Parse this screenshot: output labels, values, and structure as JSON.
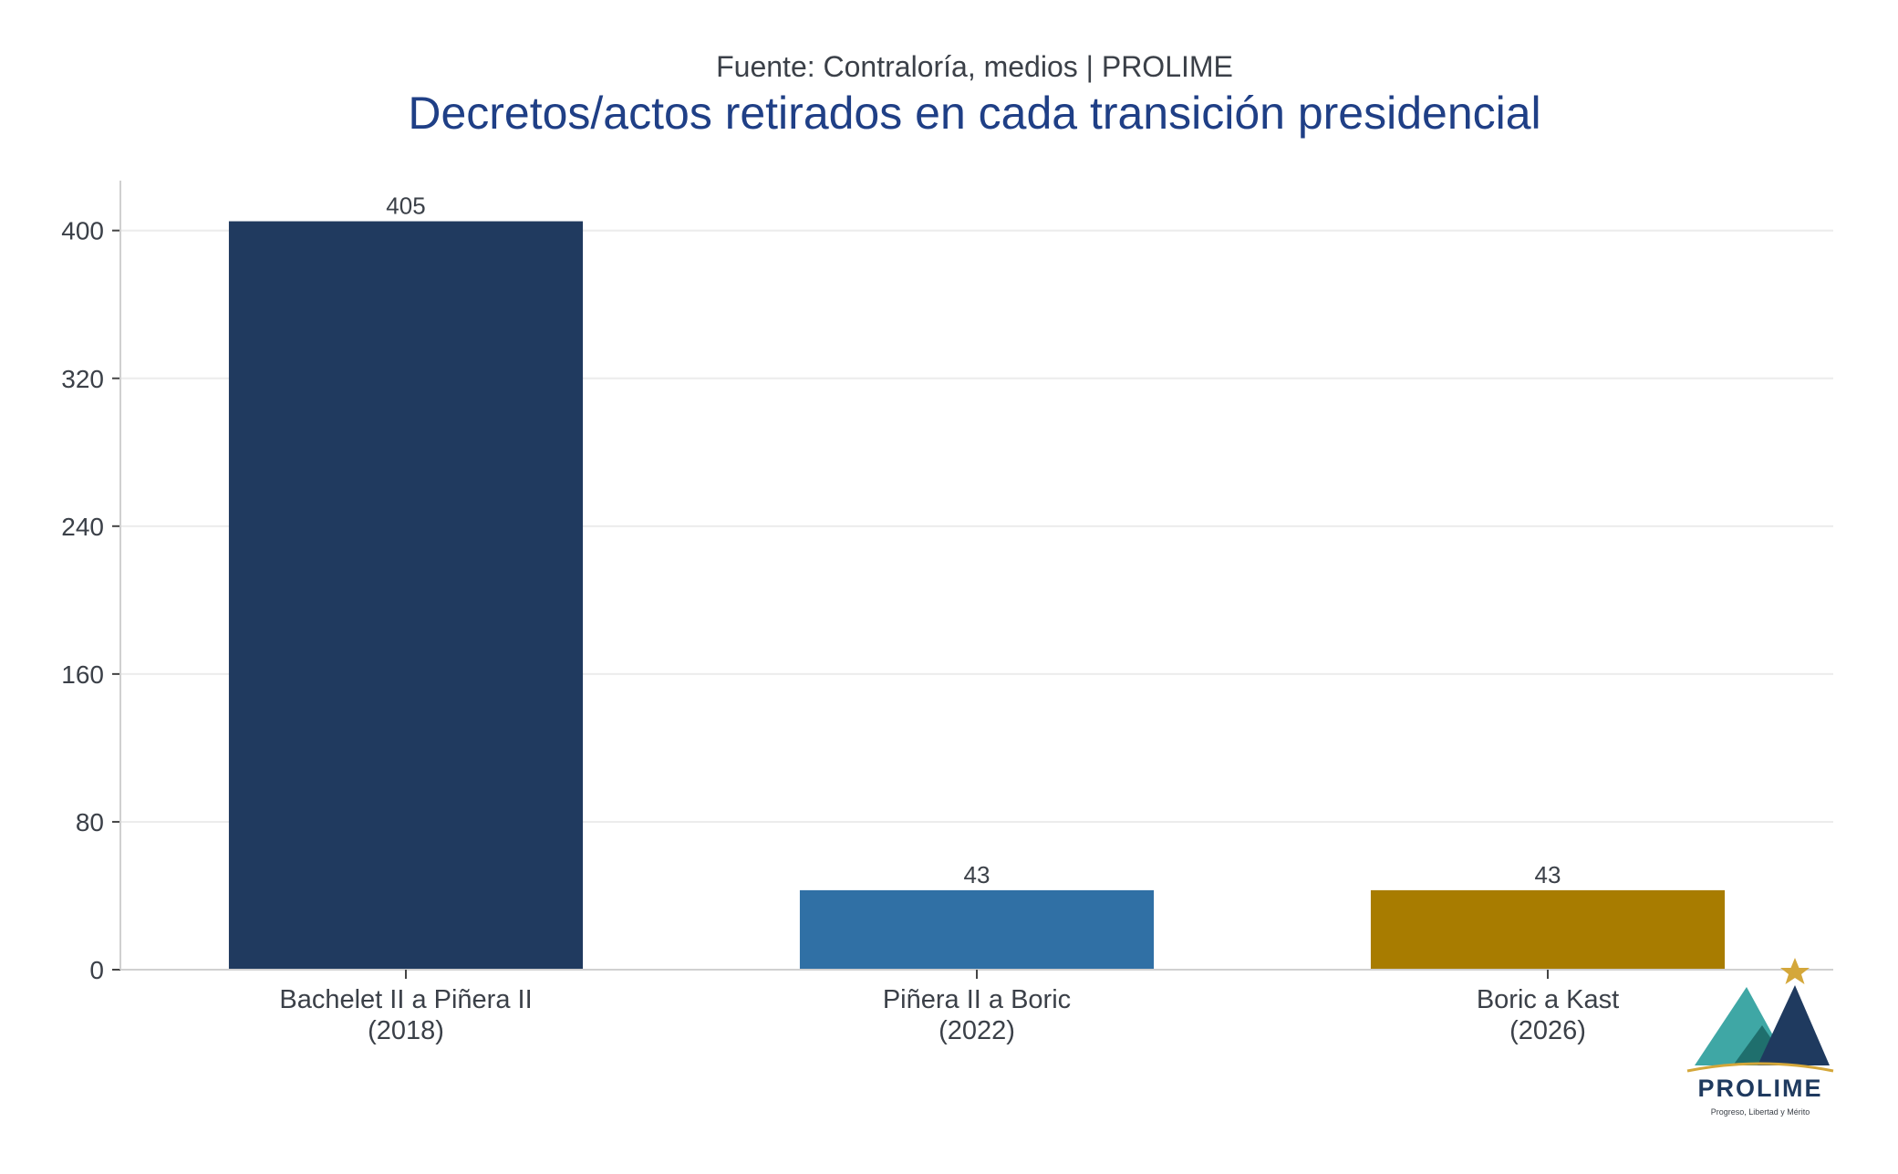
{
  "header": {
    "subtitle": "Fuente: Contraloría, medios | PROLIME",
    "title": "Decretos/actos retirados en cada transición presidencial"
  },
  "chart_data": {
    "type": "bar",
    "categories": [
      [
        "Bachelet II a Piñera II",
        "(2018)"
      ],
      [
        "Piñera II a Boric",
        "(2022)"
      ],
      [
        "Boric a Kast",
        "(2026)"
      ]
    ],
    "values": [
      405,
      43,
      43
    ],
    "value_labels": [
      "405",
      "43",
      "43"
    ],
    "colors": [
      "#203a5f",
      "#3070a5",
      "#a87c00"
    ],
    "yticks": [
      0,
      80,
      160,
      240,
      320,
      400
    ],
    "ylim": [
      0,
      427
    ],
    "grid": "horizontal",
    "xlabel": "",
    "ylabel": ""
  },
  "logo": {
    "name": "PROLIME",
    "tagline": "Progreso, Libertad y Mérito",
    "colors": {
      "teal": "#3fa7a5",
      "navy": "#1f3a5f",
      "gold": "#d4a73a"
    }
  }
}
